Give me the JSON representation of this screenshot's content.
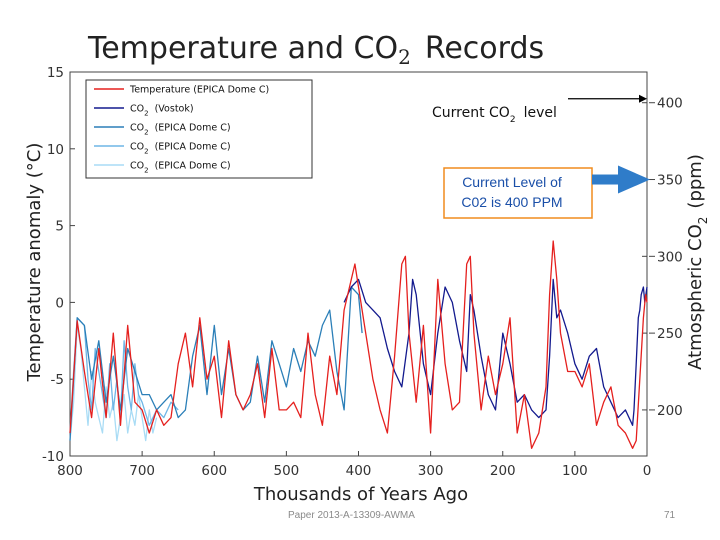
{
  "slide": {
    "footer": "Paper 2013-A-13309-AWMA",
    "page_number": "71"
  },
  "chart_data": {
    "type": "line",
    "title": "Temperature and CO",
    "title_subscript": "2",
    "title_suffix": "Records",
    "xlabel": "Thousands of Years Ago",
    "ylabel": "Temperature anomaly (°C)",
    "y2label": "Atmospheric CO",
    "y2label_subscript": "2",
    "y2label_suffix": "(ppm)",
    "xlim": [
      800,
      0
    ],
    "ylim": [
      -10,
      15
    ],
    "y2lim": [
      170,
      420
    ],
    "x_ticks": [
      800,
      700,
      600,
      500,
      400,
      300,
      200,
      100,
      0
    ],
    "y_ticks": [
      15,
      10,
      5,
      0,
      -5,
      -10
    ],
    "y2_ticks": [
      400,
      350,
      300,
      250,
      200
    ],
    "legend_position": "top-left",
    "grid": false,
    "series": [
      {
        "name": "Temperature (EPICA Dome C)",
        "legend_main": "Temperature (EPICA Dome C)",
        "axis": "left",
        "color": "#e5201e",
        "x": [
          800,
          790,
          780,
          770,
          760,
          750,
          740,
          730,
          720,
          710,
          700,
          690,
          680,
          670,
          660,
          650,
          640,
          630,
          620,
          610,
          600,
          590,
          580,
          570,
          560,
          550,
          540,
          530,
          520,
          510,
          500,
          490,
          480,
          470,
          460,
          450,
          440,
          430,
          420,
          410,
          405,
          400,
          390,
          380,
          370,
          360,
          350,
          340,
          335,
          330,
          320,
          310,
          300,
          290,
          280,
          270,
          260,
          250,
          245,
          240,
          230,
          220,
          210,
          200,
          190,
          180,
          170,
          160,
          150,
          140,
          135,
          130,
          125,
          120,
          110,
          100,
          90,
          80,
          70,
          60,
          50,
          40,
          30,
          20,
          15,
          10,
          5,
          2,
          0
        ],
        "values": [
          -8.5,
          -1.2,
          -4.5,
          -7.5,
          -3.0,
          -7.5,
          -2.0,
          -8.0,
          -1.5,
          -6.5,
          -7.0,
          -8.5,
          -7.0,
          -8.0,
          -7.5,
          -4.0,
          -2.0,
          -5.5,
          -1.0,
          -5.0,
          -3.5,
          -7.5,
          -2.5,
          -6.0,
          -7.0,
          -6.0,
          -4.0,
          -7.5,
          -3.0,
          -7.0,
          -7.0,
          -6.5,
          -7.5,
          -2.0,
          -6.0,
          -8.0,
          -3.5,
          -6.0,
          -0.5,
          1.5,
          2.5,
          1.0,
          -2.0,
          -5.0,
          -7.0,
          -8.5,
          -3.5,
          2.5,
          3.0,
          -2.0,
          -6.5,
          -1.5,
          -8.5,
          1.5,
          -4.0,
          -7.0,
          -6.5,
          2.5,
          3.0,
          -2.0,
          -7.0,
          -3.5,
          -6.0,
          -4.0,
          -1.0,
          -8.5,
          -6.0,
          -9.5,
          -8.5,
          -5.5,
          0.5,
          4.0,
          1.5,
          -2.0,
          -4.5,
          -4.5,
          -5.5,
          -4.0,
          -8.0,
          -6.5,
          -5.5,
          -8.0,
          -8.5,
          -9.5,
          -9.0,
          -5.0,
          -1.0,
          0.5,
          0.0
        ]
      },
      {
        "name": "CO2 (Vostok)",
        "legend_main": "CO",
        "legend_suffix": "(Vostok)",
        "axis": "right",
        "color": "#131a8e",
        "x": [
          420,
          410,
          400,
          390,
          380,
          370,
          360,
          350,
          340,
          330,
          325,
          320,
          310,
          300,
          290,
          280,
          270,
          260,
          250,
          245,
          240,
          230,
          220,
          210,
          200,
          190,
          180,
          170,
          160,
          150,
          140,
          135,
          130,
          125,
          120,
          110,
          100,
          90,
          80,
          70,
          60,
          50,
          40,
          30,
          20,
          18,
          15,
          12,
          10,
          8,
          5,
          3,
          0
        ],
        "values": [
          270,
          280,
          285,
          270,
          265,
          260,
          240,
          225,
          215,
          250,
          285,
          275,
          230,
          210,
          250,
          280,
          270,
          245,
          225,
          275,
          265,
          235,
          210,
          200,
          250,
          230,
          205,
          210,
          200,
          195,
          200,
          235,
          285,
          260,
          265,
          250,
          230,
          220,
          235,
          240,
          215,
          205,
          195,
          200,
          190,
          200,
          230,
          260,
          265,
          275,
          280,
          270,
          280
        ]
      },
      {
        "name": "CO2 (EPICA Dome C) 1",
        "legend_main": "CO",
        "legend_suffix": "(EPICA Dome C)",
        "axis": "right",
        "color": "#2b7fb8",
        "x": [
          800,
          790,
          780,
          770,
          760,
          750,
          740,
          730,
          720,
          710,
          700,
          690,
          680,
          670,
          660,
          650,
          640,
          630,
          620,
          610,
          600,
          590,
          580,
          570,
          560,
          550,
          540,
          530,
          520,
          510,
          500,
          490,
          480,
          470,
          460,
          450,
          440,
          430,
          420,
          410,
          400,
          395
        ],
        "values": [
          180,
          260,
          255,
          220,
          245,
          205,
          235,
          200,
          240,
          225,
          210,
          210,
          200,
          205,
          210,
          195,
          200,
          235,
          255,
          210,
          255,
          210,
          240,
          210,
          200,
          205,
          235,
          205,
          245,
          230,
          215,
          240,
          225,
          245,
          235,
          255,
          265,
          225,
          200,
          280,
          275,
          250
        ]
      },
      {
        "name": "CO2 (EPICA Dome C) 2",
        "legend_main": "CO",
        "legend_suffix": "(EPICA Dome C)",
        "axis": "right",
        "color": "#6fb6e6",
        "x": [
          800,
          795,
          790,
          780,
          775,
          770,
          765,
          760,
          755,
          750,
          745,
          740,
          735,
          730,
          725,
          720,
          715,
          710,
          705,
          700,
          690,
          680,
          670,
          660,
          650
        ],
        "values": [
          185,
          225,
          260,
          255,
          220,
          200,
          240,
          225,
          210,
          195,
          230,
          200,
          220,
          195,
          245,
          215,
          200,
          230,
          210,
          205,
          190,
          200,
          195,
          205,
          200
        ]
      },
      {
        "name": "CO2 (EPICA Dome C) 3",
        "legend_main": "CO",
        "legend_suffix": "(EPICA Dome C)",
        "axis": "right",
        "color": "#a9dcf5",
        "x": [
          800,
          795,
          790,
          785,
          780,
          775,
          770,
          765,
          760,
          755,
          750,
          745,
          740,
          735,
          730,
          725,
          720,
          715,
          710,
          705,
          700,
          695,
          690,
          685,
          680
        ],
        "values": [
          180,
          205,
          255,
          240,
          215,
          190,
          225,
          205,
          195,
          185,
          215,
          195,
          205,
          180,
          195,
          210,
          185,
          200,
          190,
          210,
          195,
          180,
          200,
          185,
          195
        ]
      }
    ],
    "annotations": [
      {
        "name": "current-co2-level",
        "text": "Current CO",
        "text_subscript": "2",
        "text_suffix": "level",
        "y_value": 400
      }
    ],
    "callout": {
      "line1": "Current Level of",
      "line2": "C02 is 400 PPM",
      "border_color": "#f08c1e",
      "text_color": "#1a4fa8",
      "arrow_color": "#2f7cc9",
      "target_y_value": 350
    }
  }
}
